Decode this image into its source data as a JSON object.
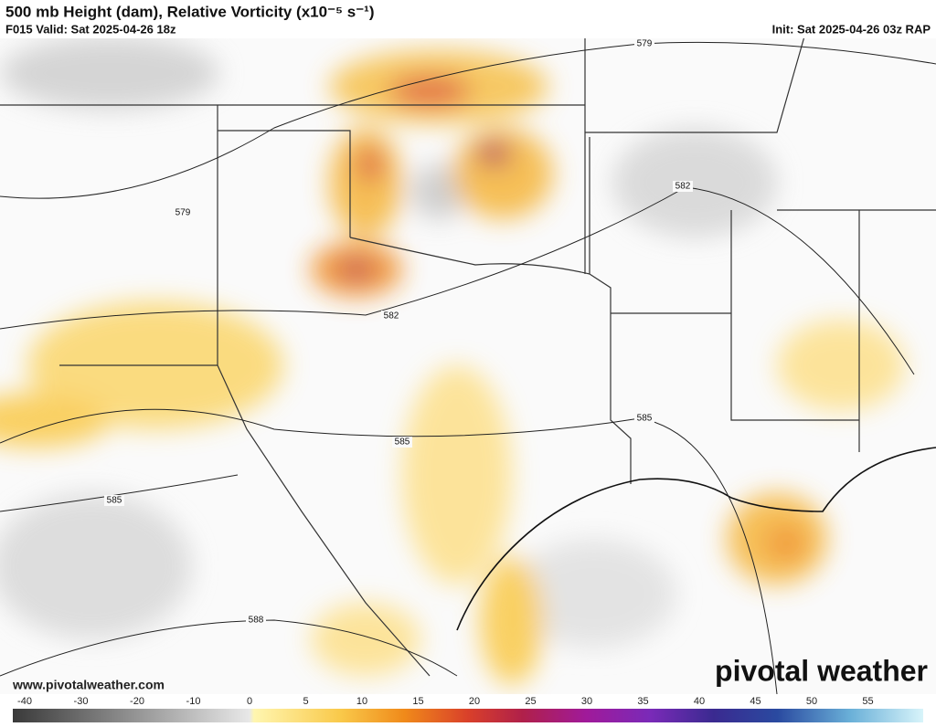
{
  "header": {
    "title": "500 mb Height (dam), Relative Vorticity (x10⁻⁵ s⁻¹)",
    "valid": "F015 Valid: Sat 2025-04-26 18z",
    "init": "Init: Sat 2025-04-26 03z RAP"
  },
  "map": {
    "contour_labels": [
      579,
      579,
      582,
      582,
      585,
      585,
      585,
      588
    ]
  },
  "colorbar": {
    "ticks": [
      -40,
      -30,
      -20,
      -10,
      0,
      5,
      10,
      15,
      20,
      25,
      30,
      35,
      40,
      45,
      50,
      55
    ]
  },
  "footer": {
    "url": "www.pivotalweather.com",
    "logo": "pivotal weather"
  }
}
